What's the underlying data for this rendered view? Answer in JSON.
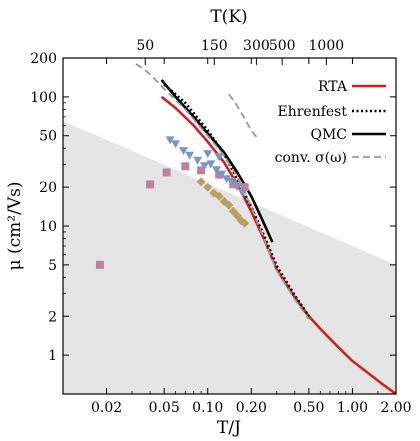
{
  "chart_data": {
    "type": "line",
    "xlabel": "T/J",
    "ylabel": "μ (cm²/Vs)",
    "x2label": "T(K)",
    "x_scale": "log",
    "y_scale": "log",
    "xlim": [
      0.01,
      2.0
    ],
    "ylim": [
      0.5,
      200
    ],
    "x_ticks": [
      0.02,
      0.05,
      0.1,
      0.2,
      0.5,
      1.0,
      2.0
    ],
    "x_tick_labels": [
      "0.02",
      "0.05",
      "0.10",
      "0.20",
      "0.50",
      "1.00",
      "2.00"
    ],
    "y_ticks": [
      1,
      2,
      5,
      10,
      20,
      50,
      100,
      200
    ],
    "y_tick_labels": [
      "1",
      "2",
      "5",
      "10",
      "20",
      "50",
      "100",
      "200"
    ],
    "top_ticks": [
      {
        "label": "50",
        "x": 0.037
      },
      {
        "label": "150",
        "x": 0.111
      },
      {
        "label": "300",
        "x": 0.217
      },
      {
        "label": "500",
        "x": 0.327
      },
      {
        "label": "1000",
        "x": 0.66
      }
    ],
    "shaded_region": {
      "color": "#e5e5e5",
      "boundary": [
        [
          0.01,
          65
        ],
        [
          2.0,
          5
        ]
      ]
    },
    "legend": {
      "position": "top-right",
      "entries": [
        "RTA",
        "Ehrenfest",
        "QMC",
        "conv. σ(ω)"
      ]
    },
    "series": [
      {
        "name": "RTA",
        "color": "#cc2222",
        "style": "solid",
        "points": [
          [
            0.048,
            100
          ],
          [
            0.06,
            82
          ],
          [
            0.08,
            60
          ],
          [
            0.1,
            45
          ],
          [
            0.13,
            31
          ],
          [
            0.16,
            21
          ],
          [
            0.2,
            13
          ],
          [
            0.25,
            7.5
          ],
          [
            0.3,
            4.6
          ],
          [
            0.4,
            2.8
          ],
          [
            0.5,
            2.0
          ],
          [
            0.6,
            1.6
          ],
          [
            0.8,
            1.15
          ],
          [
            1.0,
            0.9
          ],
          [
            1.3,
            0.72
          ],
          [
            1.6,
            0.6
          ],
          [
            2.0,
            0.5
          ]
        ]
      },
      {
        "name": "Ehrenfest",
        "color": "#000000",
        "style": "dotted",
        "points": [
          [
            0.05,
            125
          ],
          [
            0.07,
            90
          ],
          [
            0.1,
            55
          ],
          [
            0.13,
            36
          ],
          [
            0.16,
            23
          ],
          [
            0.2,
            14
          ],
          [
            0.25,
            8
          ],
          [
            0.3,
            4.9
          ],
          [
            0.4,
            2.9
          ],
          [
            0.5,
            2.0
          ]
        ]
      },
      {
        "name": "QMC",
        "color": "#000000",
        "style": "solid",
        "points": [
          [
            0.048,
            135
          ],
          [
            0.06,
            100
          ],
          [
            0.08,
            70
          ],
          [
            0.1,
            52
          ],
          [
            0.13,
            37
          ],
          [
            0.16,
            26
          ],
          [
            0.2,
            17
          ],
          [
            0.24,
            11
          ],
          [
            0.28,
            7.5
          ]
        ]
      },
      {
        "name": "conv. σ(ω)",
        "color": "#999999",
        "style": "dashed",
        "points": [
          [
            0.032,
            180
          ],
          [
            0.04,
            150
          ],
          [
            0.05,
            115
          ],
          [
            0.07,
            80
          ],
          [
            0.1,
            50
          ],
          [
            0.13,
            35
          ],
          [
            0.16,
            24
          ],
          [
            0.2,
            14
          ],
          [
            0.25,
            7.5
          ],
          [
            0.3,
            4.5
          ],
          [
            0.4,
            2.7
          ],
          [
            0.5,
            1.9
          ]
        ]
      },
      {
        "name": "",
        "color": "#999999",
        "style": "dashed",
        "points": [
          [
            0.14,
            105
          ],
          [
            0.16,
            85
          ],
          [
            0.18,
            68
          ],
          [
            0.2,
            55
          ],
          [
            0.22,
            48
          ]
        ]
      }
    ],
    "scatter": [
      {
        "marker": "square",
        "color": "#c0809a",
        "points": [
          [
            0.018,
            5
          ],
          [
            0.04,
            21
          ],
          [
            0.052,
            26
          ],
          [
            0.07,
            29
          ],
          [
            0.09,
            27
          ],
          [
            0.12,
            25
          ],
          [
            0.15,
            21
          ],
          [
            0.18,
            20
          ]
        ]
      },
      {
        "marker": "triangle-down",
        "color": "#7a95c8",
        "points": [
          [
            0.055,
            46
          ],
          [
            0.06,
            43
          ],
          [
            0.068,
            38
          ],
          [
            0.075,
            35
          ],
          [
            0.085,
            32
          ],
          [
            0.095,
            29
          ],
          [
            0.105,
            30
          ],
          [
            0.115,
            27
          ],
          [
            0.125,
            25
          ],
          [
            0.135,
            23
          ],
          [
            0.145,
            22
          ],
          [
            0.16,
            20
          ],
          [
            0.175,
            18
          ],
          [
            0.12,
            34
          ],
          [
            0.1,
            36
          ]
        ]
      },
      {
        "marker": "diamond",
        "color": "#b8a060",
        "points": [
          [
            0.09,
            22
          ],
          [
            0.1,
            20
          ],
          [
            0.11,
            18
          ],
          [
            0.12,
            17
          ],
          [
            0.13,
            15.5
          ],
          [
            0.14,
            14.5
          ],
          [
            0.15,
            13
          ],
          [
            0.16,
            12
          ],
          [
            0.17,
            11
          ],
          [
            0.18,
            10.5
          ]
        ]
      }
    ]
  }
}
